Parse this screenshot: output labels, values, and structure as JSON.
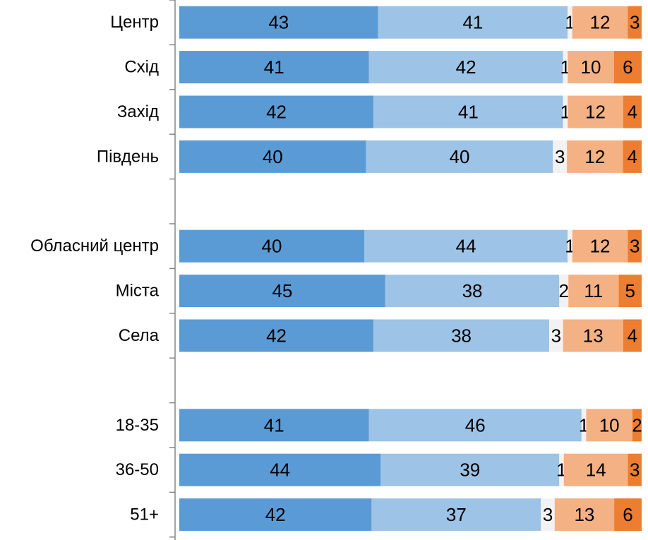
{
  "chart_data": {
    "type": "bar",
    "orientation": "horizontal",
    "stacked": true,
    "title": "",
    "xlabel": "",
    "ylabel": "",
    "legend": "none",
    "grid": false,
    "xlim": [
      0,
      100
    ],
    "rows": [
      {
        "category": "Центр",
        "values": [
          43,
          41,
          1,
          12,
          3
        ]
      },
      {
        "category": "Схід",
        "values": [
          41,
          42,
          1,
          10,
          6
        ]
      },
      {
        "category": "Захід",
        "values": [
          42,
          41,
          1,
          12,
          4
        ]
      },
      {
        "category": "Південь",
        "values": [
          40,
          40,
          3,
          12,
          4
        ]
      },
      {
        "category": "",
        "values": []
      },
      {
        "category": "Обласний центр",
        "values": [
          40,
          44,
          1,
          12,
          3
        ]
      },
      {
        "category": "Міста",
        "values": [
          45,
          38,
          2,
          11,
          5
        ]
      },
      {
        "category": "Села",
        "values": [
          42,
          38,
          3,
          13,
          4
        ]
      },
      {
        "category": "",
        "values": []
      },
      {
        "category": "18-35",
        "values": [
          41,
          46,
          1,
          10,
          2
        ]
      },
      {
        "category": "36-50",
        "values": [
          44,
          39,
          1,
          14,
          3
        ]
      },
      {
        "category": "51+",
        "values": [
          42,
          37,
          3,
          13,
          6
        ]
      }
    ],
    "segment_colors": [
      "#5b9bd5",
      "#9dc3e6",
      "#f2f2f2",
      "#f4b183",
      "#ed7d31"
    ]
  }
}
